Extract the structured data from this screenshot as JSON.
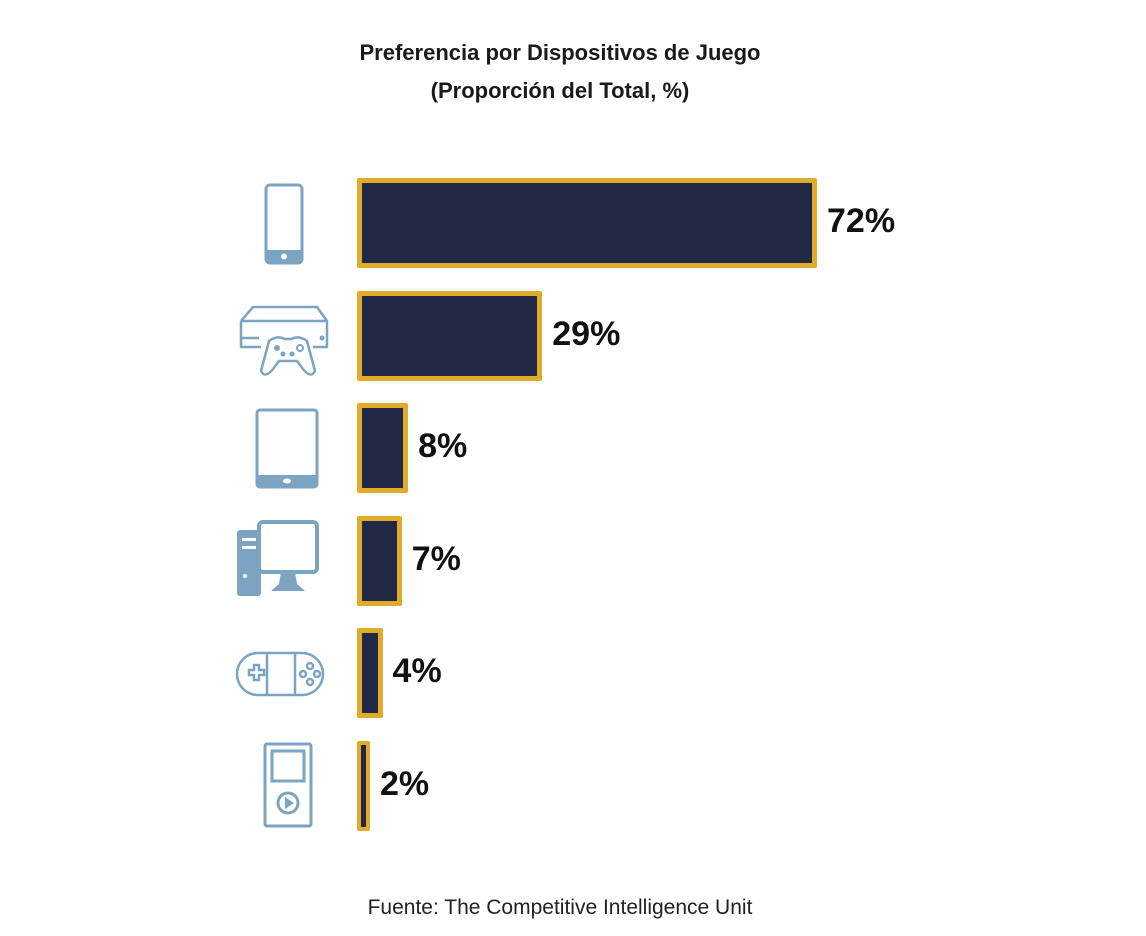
{
  "chart_data": {
    "type": "bar",
    "orientation": "horizontal",
    "title": "Preferencia por Dispositivos de Juego",
    "subtitle": "(Proporción del Total, %)",
    "categories": [
      "smartphone-icon",
      "console-icon",
      "tablet-icon",
      "desktop-pc-icon",
      "handheld-console-icon",
      "media-player-icon"
    ],
    "values": [
      72,
      29,
      8,
      7,
      4,
      2
    ],
    "data_labels": [
      "72%",
      "29%",
      "8%",
      "7%",
      "4%",
      "2%"
    ],
    "xlim": [
      0,
      72
    ],
    "grid": false,
    "colors": {
      "bar_fill": "#222944",
      "bar_border": "#e0ab2a",
      "icon": "#7ba3c2"
    }
  },
  "source": "Fuente: The Competitive Intelligence Unit"
}
